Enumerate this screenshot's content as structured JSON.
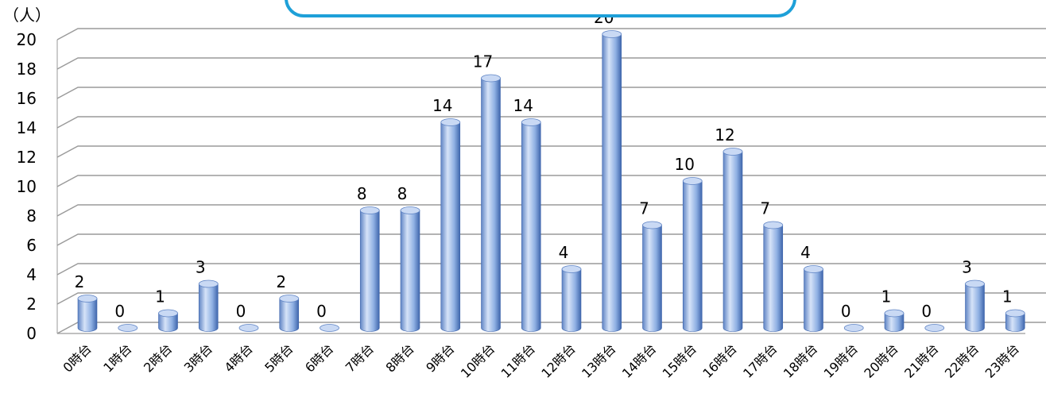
{
  "chart_data": {
    "type": "bar",
    "title": "",
    "ylabel": "（人）",
    "xlabel": "",
    "ylim": [
      0,
      20
    ],
    "yticks": [
      0,
      2,
      4,
      6,
      8,
      10,
      12,
      14,
      16,
      18,
      20
    ],
    "grid": true,
    "categories": [
      "0時台",
      "1時台",
      "2時台",
      "3時台",
      "4時台",
      "5時台",
      "6時台",
      "7時台",
      "8時台",
      "9時台",
      "10時台",
      "11時台",
      "12時台",
      "13時台",
      "14時台",
      "15時台",
      "16時台",
      "17時台",
      "18時台",
      "19時台",
      "20時台",
      "21時台",
      "22時台",
      "23時台"
    ],
    "values": [
      2,
      0,
      1,
      3,
      0,
      2,
      0,
      8,
      8,
      14,
      17,
      14,
      4,
      20,
      7,
      10,
      12,
      7,
      4,
      0,
      1,
      0,
      3,
      1
    ],
    "colors": {
      "bar_light": "#c9d9f4",
      "bar_mid": "#8fb0e3",
      "bar_dark": "#4a72b8",
      "grid": "#9a9a9a",
      "title_border": "#1ea0d8"
    }
  }
}
